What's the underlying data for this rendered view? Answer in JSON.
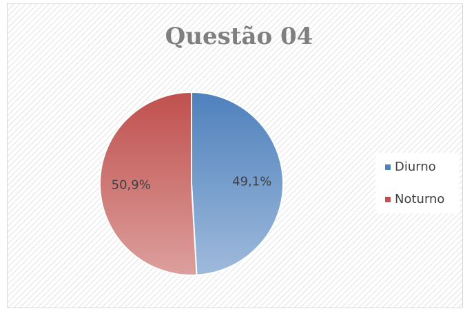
{
  "chart_data": {
    "type": "pie",
    "title": "Questão 04",
    "categories": [
      "Diurno",
      "Noturno"
    ],
    "values": [
      49.1,
      50.9
    ],
    "value_labels": [
      "49,1%",
      "50,9%"
    ],
    "colors": [
      "#4f81bd",
      "#c0504d"
    ],
    "legend": "right"
  }
}
